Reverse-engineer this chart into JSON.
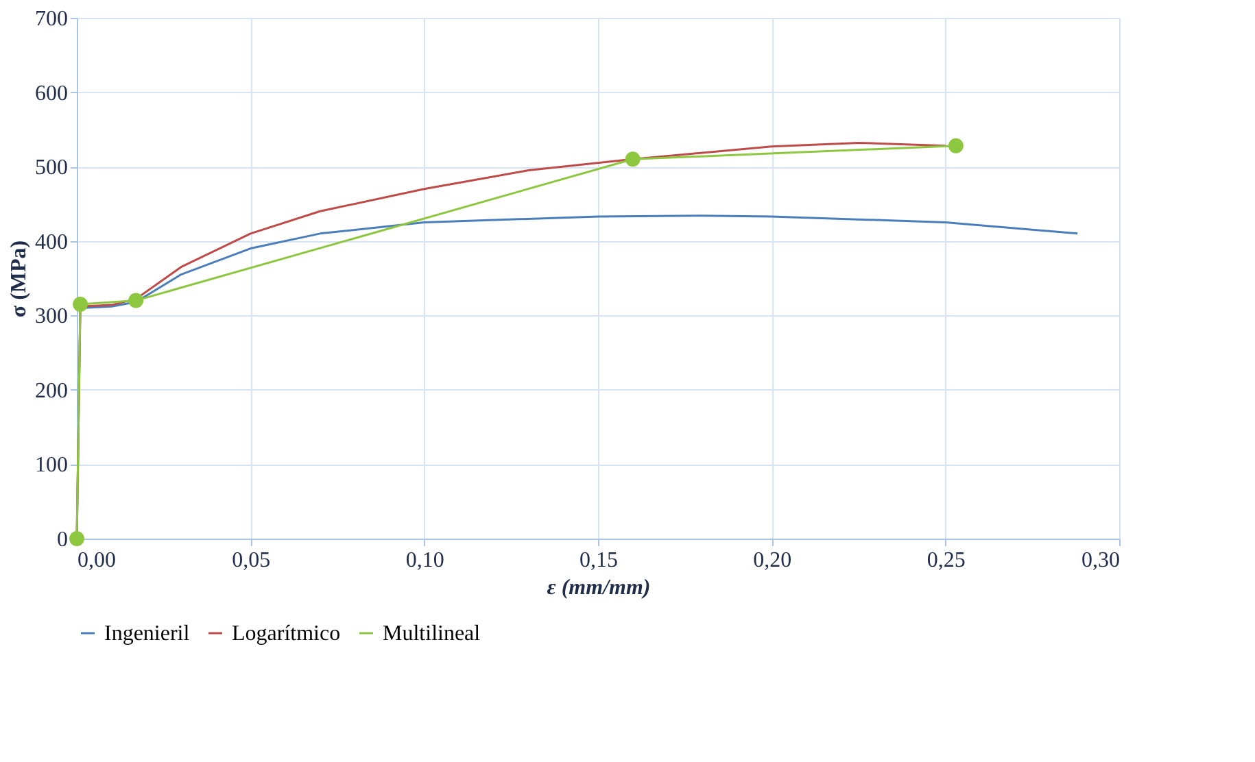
{
  "chart_data": {
    "type": "line",
    "xlabel": "ε (mm/mm)",
    "ylabel": "σ (MPa)",
    "xlim": [
      0,
      0.3
    ],
    "ylim": [
      0,
      700
    ],
    "xticks": [
      {
        "value": 0,
        "label": "0,00"
      },
      {
        "value": 0.05,
        "label": "0,05"
      },
      {
        "value": 0.1,
        "label": "0,10"
      },
      {
        "value": 0.15,
        "label": "0,15"
      },
      {
        "value": 0.2,
        "label": "0,20"
      },
      {
        "value": 0.25,
        "label": "0,25"
      },
      {
        "value": 0.3,
        "label": "0,30"
      }
    ],
    "yticks": [
      0,
      100,
      200,
      300,
      400,
      500,
      600,
      700
    ],
    "grid": true,
    "legend": "bottom",
    "line_style": "solid",
    "series": [
      {
        "name": "Ingenieril",
        "color": "#4a7ebb",
        "marker": "none",
        "x": [
          0,
          0.001,
          0.01,
          0.017,
          0.03,
          0.05,
          0.07,
          0.1,
          0.15,
          0.18,
          0.2,
          0.25,
          0.288
        ],
        "values": [
          0,
          310,
          312,
          318,
          355,
          390,
          410,
          425,
          433,
          434,
          433,
          425,
          410
        ]
      },
      {
        "name": "Logarítmico",
        "color": "#be4b48",
        "marker": "none",
        "x": [
          0,
          0.001,
          0.01,
          0.017,
          0.03,
          0.05,
          0.07,
          0.1,
          0.13,
          0.16,
          0.2,
          0.225,
          0.25
        ],
        "values": [
          0,
          312,
          314,
          322,
          365,
          410,
          440,
          470,
          495,
          510,
          527,
          532,
          528
        ]
      },
      {
        "name": "Multilineal",
        "color": "#8dc63f",
        "marker": "circle",
        "x": [
          0,
          0.001,
          0.017,
          0.16,
          0.253
        ],
        "values": [
          0,
          315,
          320,
          510,
          528
        ]
      }
    ]
  }
}
